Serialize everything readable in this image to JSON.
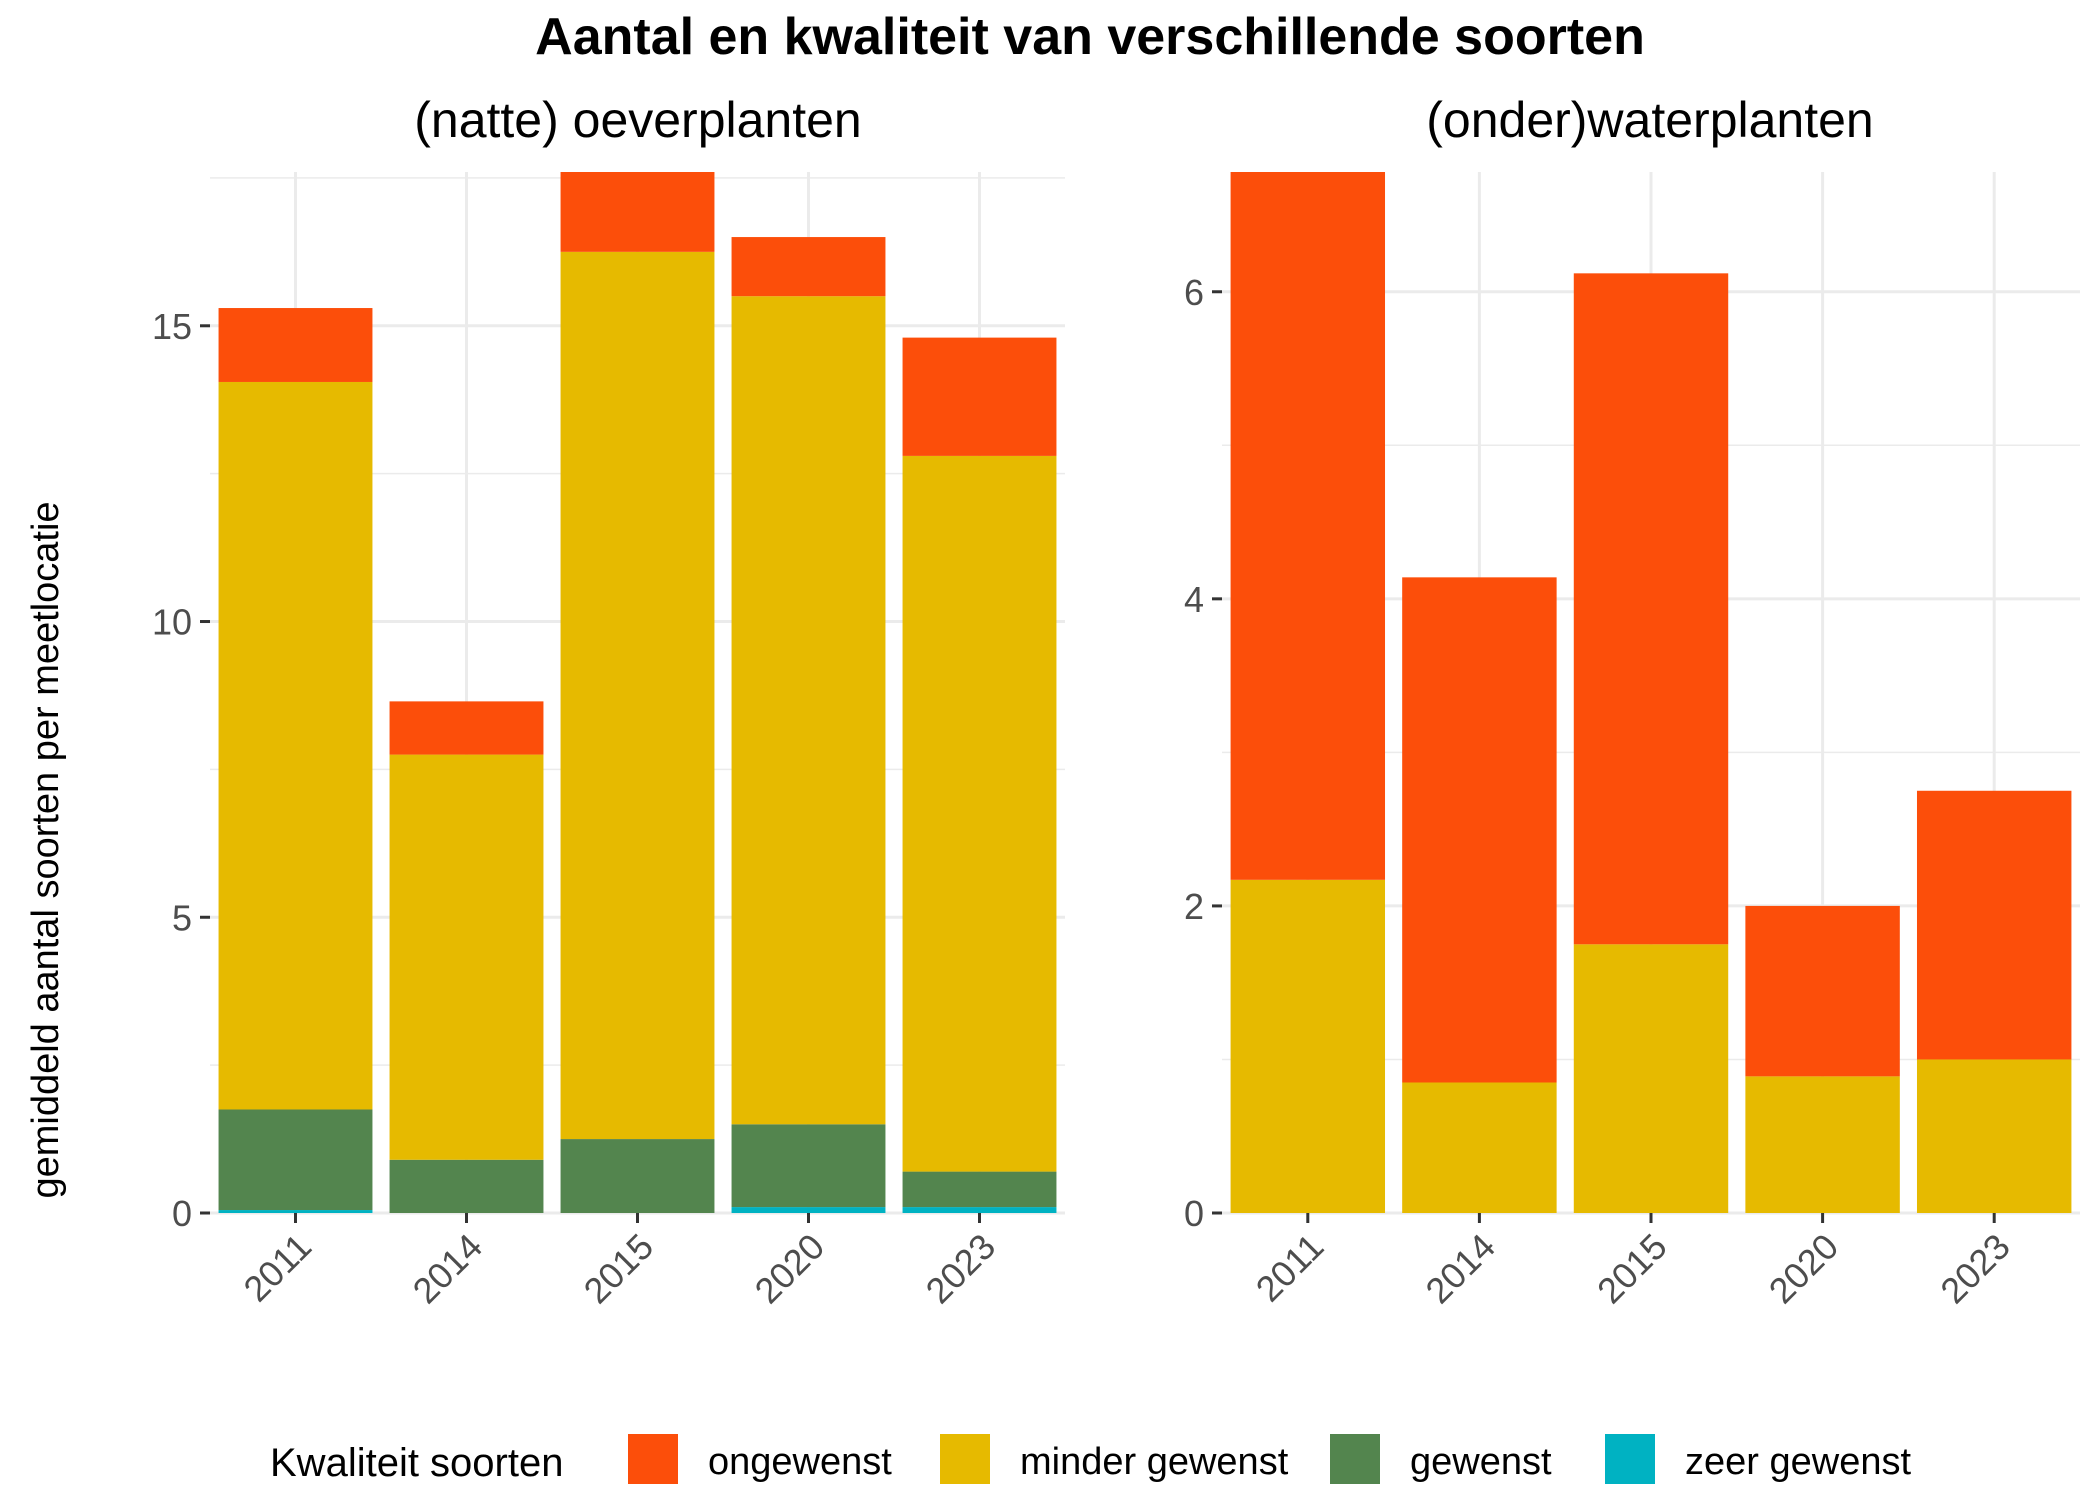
{
  "chart_data": {
    "type": "bar",
    "stacked": true,
    "title": "Aantal en kwaliteit van verschillende soorten",
    "ylabel": "gemiddeld aantal soorten per meetlocatie",
    "legend": {
      "title": "Kwaliteit soorten",
      "position": "bottom",
      "entries": [
        {
          "label": "ongewenst",
          "color": "#FC4E0A"
        },
        {
          "label": "minder gewenst",
          "color": "#E6BA00"
        },
        {
          "label": "gewenst",
          "color": "#53854E"
        },
        {
          "label": "zeer gewenst",
          "color": "#00B2C2"
        }
      ]
    },
    "grid": true,
    "panels": [
      {
        "title": "(natte) oeverplanten",
        "categories": [
          "2011",
          "2014",
          "2015",
          "2020",
          "2023"
        ],
        "ylim": [
          0,
          17.6
        ],
        "yticks": [
          0,
          5,
          10,
          15
        ],
        "series": [
          {
            "name": "zeer gewenst",
            "color": "#00B2C2",
            "values": [
              0.05,
              0.0,
              0.0,
              0.1,
              0.1
            ]
          },
          {
            "name": "gewenst",
            "color": "#53854E",
            "values": [
              1.7,
              0.9,
              1.25,
              1.4,
              0.6
            ]
          },
          {
            "name": "minder gewenst",
            "color": "#E6BA00",
            "values": [
              12.3,
              6.85,
              15.0,
              14.0,
              12.1
            ]
          },
          {
            "name": "ongewenst",
            "color": "#FC4E0A",
            "values": [
              1.25,
              0.9,
              1.35,
              1.0,
              2.0
            ]
          }
        ]
      },
      {
        "title": "(onder)waterplanten",
        "categories": [
          "2011",
          "2014",
          "2015",
          "2020",
          "2023"
        ],
        "ylim": [
          0,
          6.78
        ],
        "yticks": [
          0,
          2,
          4,
          6
        ],
        "series": [
          {
            "name": "zeer gewenst",
            "color": "#00B2C2",
            "values": [
              0,
              0,
              0,
              0,
              0
            ]
          },
          {
            "name": "gewenst",
            "color": "#53854E",
            "values": [
              0,
              0,
              0,
              0,
              0
            ]
          },
          {
            "name": "minder gewenst",
            "color": "#E6BA00",
            "values": [
              2.17,
              0.85,
              1.75,
              0.89,
              1.0
            ]
          },
          {
            "name": "ongewenst",
            "color": "#FC4E0A",
            "values": [
              4.61,
              3.29,
              4.37,
              1.11,
              1.75
            ]
          }
        ]
      }
    ]
  }
}
